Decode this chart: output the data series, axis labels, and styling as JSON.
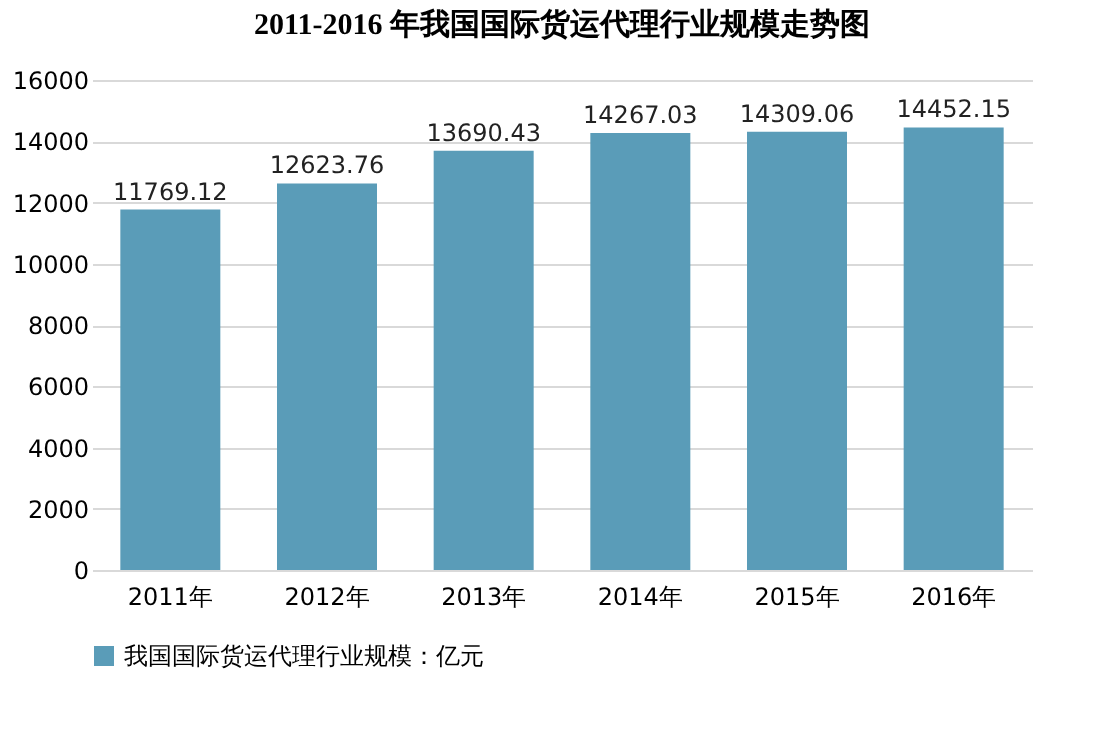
{
  "chart_data": {
    "type": "bar",
    "title": "2011-2016 年我国国际货运代理行业规模走势图",
    "categories": [
      "2011年",
      "2012年",
      "2013年",
      "2014年",
      "2015年",
      "2016年"
    ],
    "series": [
      {
        "name": "我国国际货运代理行业规模：亿元",
        "color": "#5a9cb8",
        "values": [
          11769.12,
          12623.76,
          13690.43,
          14267.03,
          14309.06,
          14452.15
        ]
      }
    ],
    "ylim": [
      0,
      16000
    ],
    "yticks": [
      0,
      2000,
      4000,
      6000,
      8000,
      10000,
      12000,
      14000,
      16000
    ],
    "grid": "y",
    "legend": "bottom",
    "data_labels": true
  }
}
